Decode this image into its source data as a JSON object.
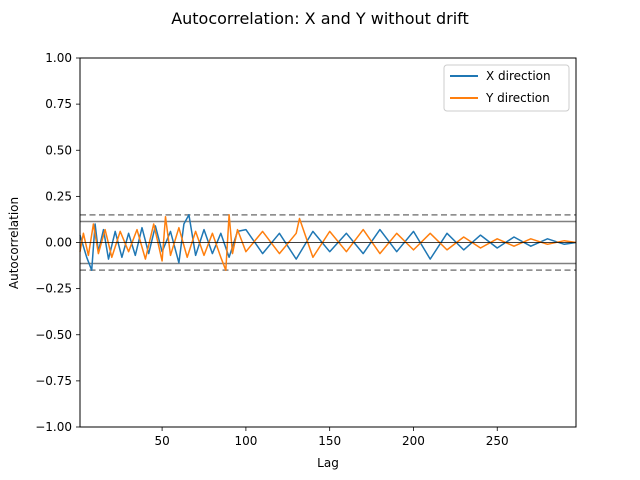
{
  "chart_data": {
    "type": "line",
    "title": "Autocorrelation: X and Y without drift",
    "xlabel": "Lag",
    "ylabel": "Autocorrelation",
    "xlim": [
      1,
      297
    ],
    "ylim": [
      -1.0,
      1.0
    ],
    "xticks": [
      50,
      100,
      150,
      200,
      250
    ],
    "yticks": [
      -1.0,
      -0.75,
      -0.5,
      -0.25,
      0.0,
      0.25,
      0.5,
      0.75,
      1.0
    ],
    "ytick_labels": [
      "−1.00",
      "−0.75",
      "−0.50",
      "−0.25",
      "0.00",
      "0.25",
      "0.50",
      "0.75",
      "1.00"
    ],
    "grid": false,
    "legend_position": "top-right",
    "confidence_bands": {
      "z95": 0.114,
      "z99": 0.15,
      "color": "#808080"
    },
    "series": [
      {
        "name": "X direction",
        "color": "#1f77b4",
        "x": [
          1,
          5,
          8,
          10,
          12,
          15,
          18,
          22,
          26,
          30,
          34,
          38,
          42,
          46,
          50,
          55,
          60,
          63,
          66,
          70,
          75,
          80,
          85,
          90,
          95,
          100,
          110,
          120,
          130,
          140,
          150,
          160,
          170,
          180,
          190,
          200,
          210,
          220,
          230,
          240,
          250,
          260,
          270,
          280,
          290,
          297
        ],
        "values": [
          0.04,
          -0.08,
          -0.15,
          0.1,
          -0.05,
          0.07,
          -0.09,
          0.06,
          -0.08,
          0.05,
          -0.07,
          0.08,
          -0.06,
          0.09,
          -0.05,
          0.06,
          -0.11,
          0.1,
          0.15,
          -0.07,
          0.07,
          -0.06,
          0.05,
          -0.08,
          0.06,
          0.07,
          -0.06,
          0.05,
          -0.09,
          0.06,
          -0.05,
          0.05,
          -0.06,
          0.07,
          -0.05,
          0.06,
          -0.09,
          0.05,
          -0.04,
          0.04,
          -0.03,
          0.03,
          -0.02,
          0.02,
          -0.01,
          0.0
        ]
      },
      {
        "name": "Y direction",
        "color": "#ff7f0e",
        "x": [
          1,
          3,
          6,
          9,
          12,
          16,
          20,
          25,
          30,
          35,
          40,
          45,
          50,
          52,
          55,
          60,
          65,
          70,
          75,
          80,
          85,
          88,
          90,
          92,
          95,
          100,
          110,
          120,
          130,
          132,
          140,
          150,
          160,
          170,
          180,
          190,
          200,
          210,
          220,
          230,
          240,
          250,
          260,
          270,
          280,
          290,
          297
        ],
        "values": [
          -0.05,
          0.05,
          -0.07,
          0.1,
          -0.06,
          0.07,
          -0.08,
          0.06,
          -0.05,
          0.07,
          -0.09,
          0.1,
          -0.1,
          0.14,
          -0.07,
          0.08,
          -0.08,
          0.06,
          -0.07,
          0.05,
          -0.08,
          -0.15,
          0.15,
          -0.06,
          0.07,
          -0.05,
          0.06,
          -0.06,
          0.05,
          0.13,
          -0.08,
          0.06,
          -0.05,
          0.07,
          -0.06,
          0.05,
          -0.04,
          0.05,
          -0.04,
          0.03,
          -0.03,
          0.02,
          -0.02,
          0.02,
          -0.01,
          0.01,
          0.0
        ]
      }
    ]
  }
}
